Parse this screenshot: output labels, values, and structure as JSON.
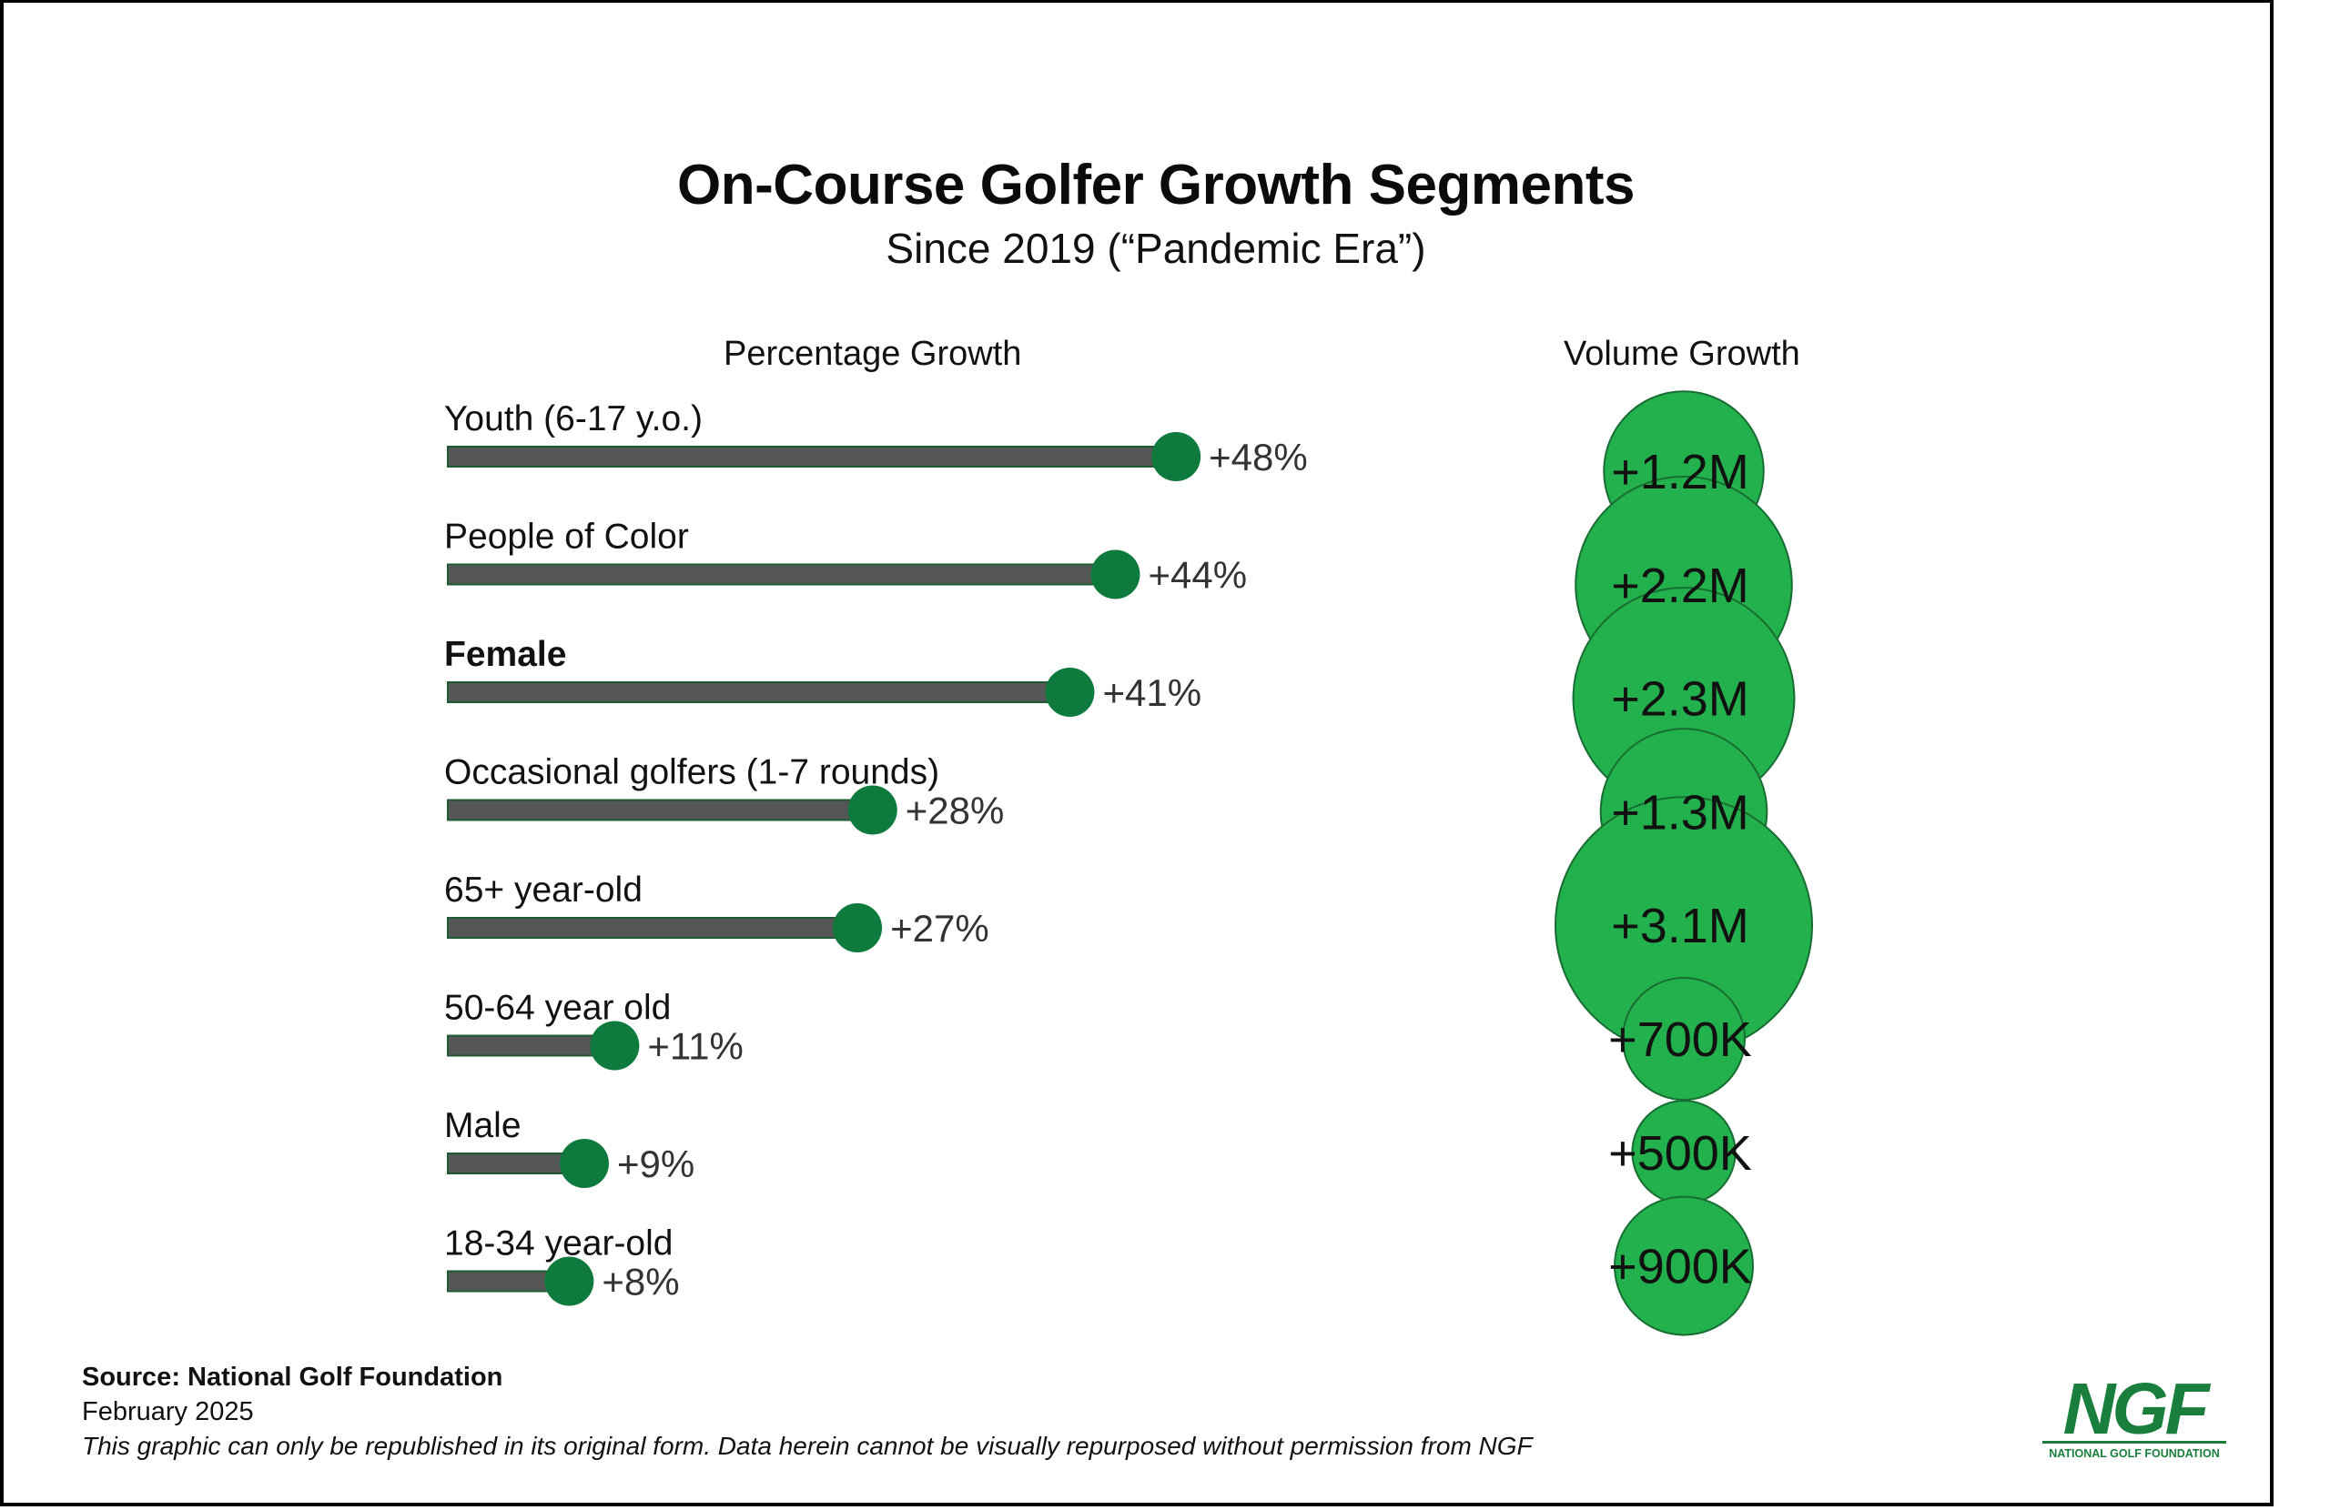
{
  "title": "On-Course Golfer Growth Segments",
  "subtitle": "Since 2019 (“Pandemic Era”)",
  "footer": {
    "source": "Source: National Golf Foundation",
    "date": "February 2025",
    "disclaimer": "This graphic can only be republished in its original form. Data herein cannot be visually repurposed without permission from NGF"
  },
  "logo": {
    "text": "NGF",
    "subtext": "NATIONAL GOLF FOUNDATION",
    "color": "#1a7f3c"
  },
  "colors": {
    "bar": "#555756",
    "bar_outline": "#1f5a33",
    "dot": "#0e7a3d",
    "bubble": "#22b14c",
    "bubble_outline": "#186d33"
  },
  "chart_data": [
    {
      "type": "bar",
      "title": "Percentage Growth",
      "categories": [
        "Youth (6-17 y.o.)",
        "People of Color",
        "Female",
        "Occasional golfers (1-7 rounds)",
        "65+ year-old",
        "50-64 year old",
        "Male",
        "18-34 year-old"
      ],
      "values": [
        48,
        44,
        41,
        28,
        27,
        11,
        9,
        8
      ],
      "value_labels": [
        "+48%",
        "+44%",
        "+41%",
        "+28%",
        "+27%",
        "+11%",
        "+9%",
        "+8%"
      ],
      "bold_categories": [
        "Female"
      ],
      "unit": "%"
    },
    {
      "type": "scatter",
      "title": "Volume Growth",
      "categories": [
        "Youth (6-17 y.o.)",
        "People of Color",
        "Female",
        "Occasional golfers (1-7 rounds)",
        "65+ year-old",
        "50-64 year old",
        "Male",
        "18-34 year-old"
      ],
      "values": [
        1200000,
        2200000,
        2300000,
        1300000,
        3100000,
        700000,
        500000,
        900000
      ],
      "value_labels": [
        "+1.2M",
        "+2.2M",
        "+2.3M",
        "+1.3M",
        "+3.1M",
        "+700K",
        "+500K",
        "+900K"
      ]
    }
  ]
}
